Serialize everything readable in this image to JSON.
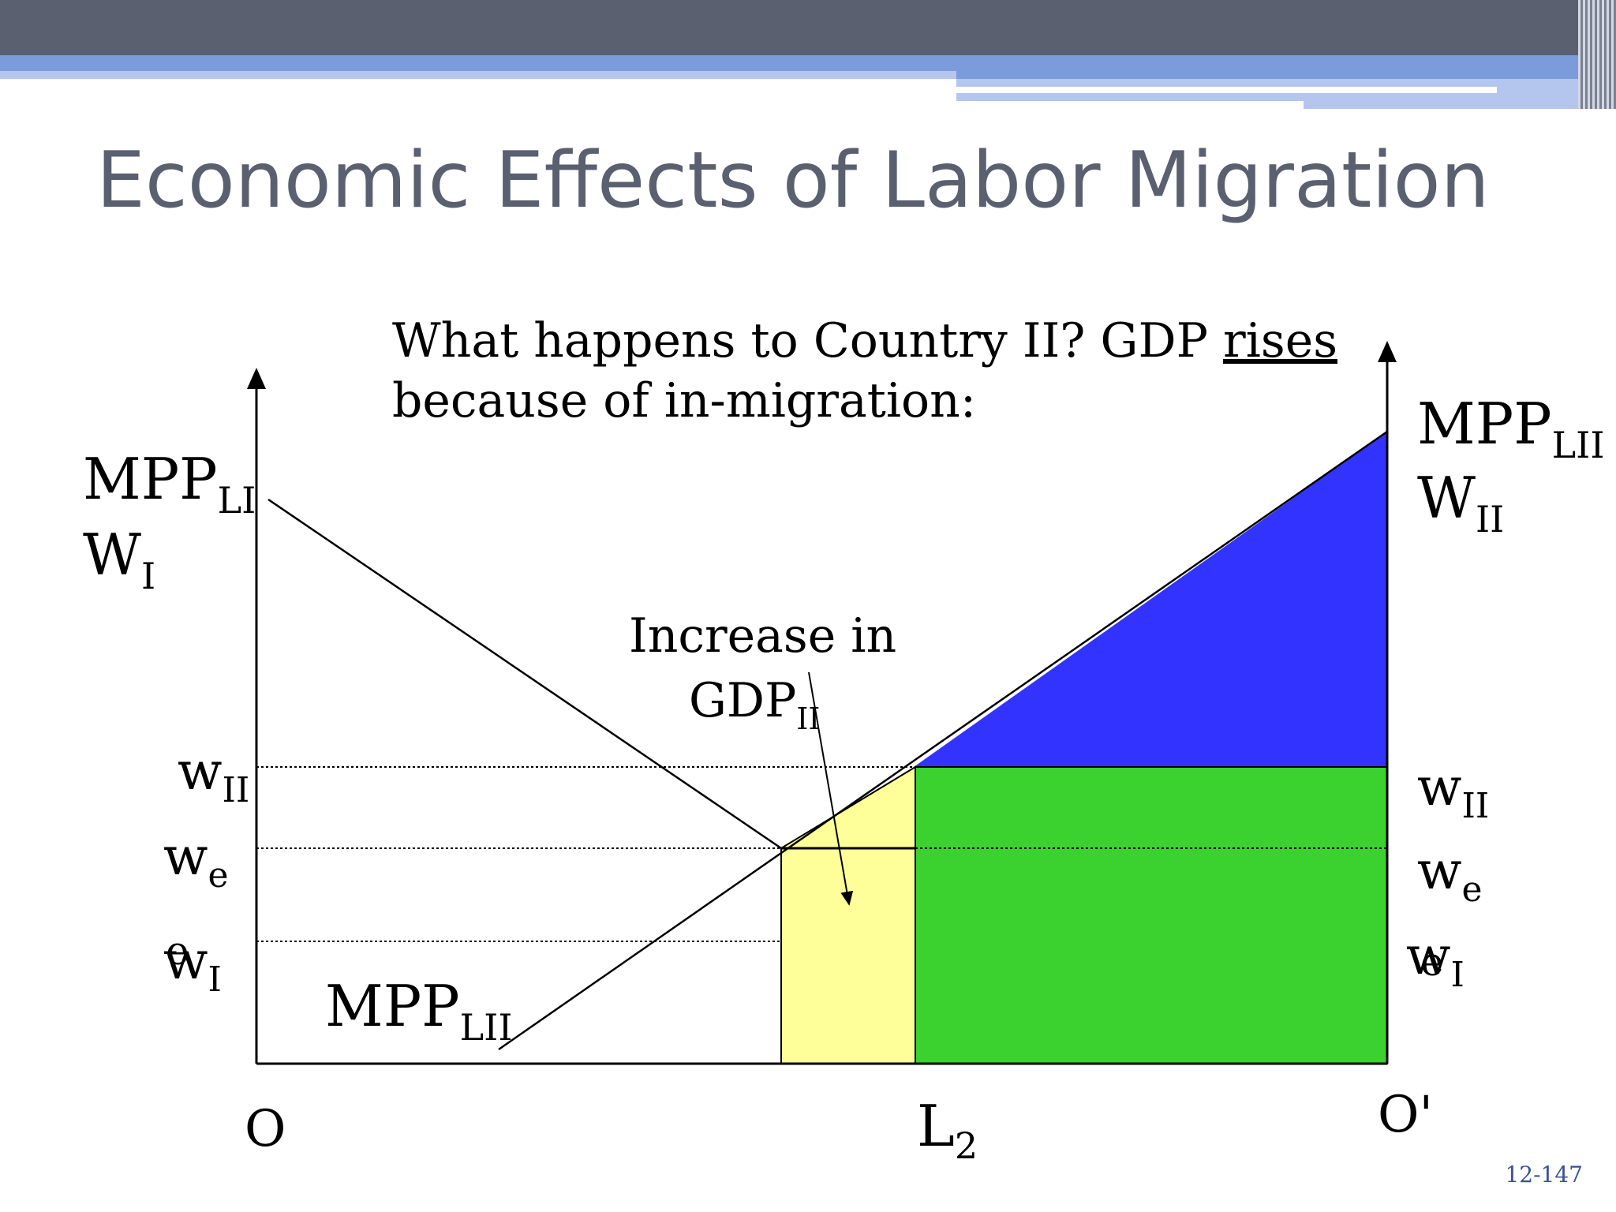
{
  "slide": {
    "title": "Economic Effects of Labor Migration",
    "page_number": "12-147",
    "colors": {
      "title": "#5b6070",
      "top_bar": "#5b6070",
      "accent_band": "#7b9bdb",
      "blue_region": "#3333ff",
      "green_region": "#3bd22f",
      "yellow_region": "#ffff99",
      "page_number": "#3a5196"
    }
  },
  "diagram": {
    "question_line1": "What happens to Country II?  GDP ",
    "question_emphasis": "rises",
    "question_line2": "because of in-migration:",
    "callout_line1": "Increase in",
    "callout_gdp": "GDP",
    "callout_gdp_sub": "II",
    "left_axis": {
      "mpp": "MPP",
      "mpp_sub": "LI",
      "w": "W",
      "w_sub": "I"
    },
    "right_axis": {
      "mpp": "MPP",
      "mpp_sub": "LII",
      "w": "W",
      "w_sub": "II"
    },
    "left_ticks": {
      "w_II": "w",
      "w_II_sub": "II",
      "w_e": "w",
      "w_e_sub": "e",
      "w_I": "w",
      "w_I_sub": "I",
      "w_I_overlap": "e"
    },
    "right_ticks": {
      "w_II": "w",
      "w_II_sub": "II",
      "w_e": "w",
      "w_e_sub": "e",
      "w_I": "w",
      "w_I_sub": "I",
      "w_I_overlap": "e"
    },
    "curve_label": {
      "mpp": "MPP",
      "mpp_sub": "LII"
    },
    "origin_left": "O",
    "origin_right": "O'",
    "l2": "L",
    "l2_sub": "2"
  }
}
